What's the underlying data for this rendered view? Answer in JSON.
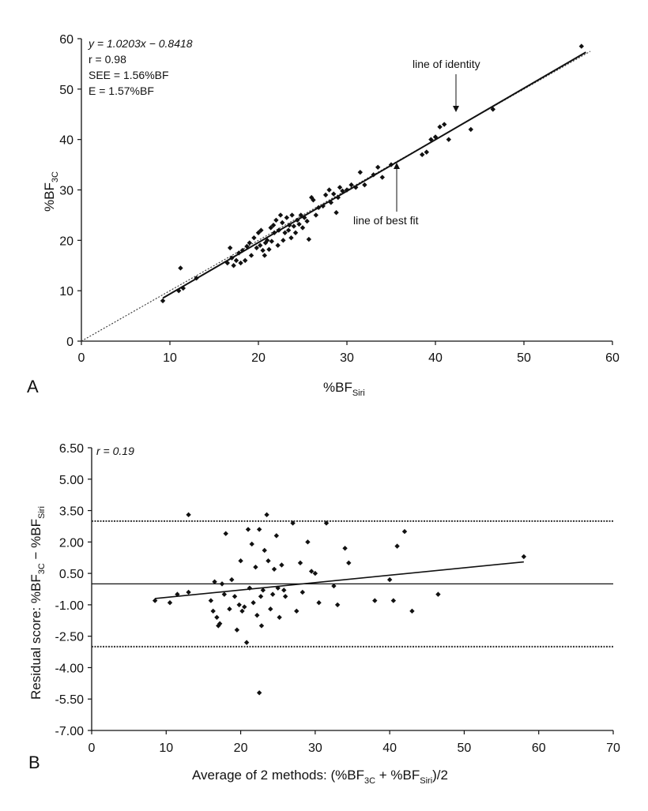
{
  "chart_data": [
    {
      "panel_label": "A",
      "type": "scatter",
      "xlabel": {
        "main": "%BF",
        "sub": "Siri"
      },
      "ylabel": {
        "main": "%BF",
        "sub": "3C"
      },
      "xlim": [
        0,
        60
      ],
      "ylim": [
        0,
        60
      ],
      "xticks": [
        0,
        10,
        20,
        30,
        40,
        50,
        60
      ],
      "yticks": [
        0,
        10,
        20,
        30,
        40,
        50,
        60
      ],
      "stats": {
        "equation": "y = 1.0203x − 0.8418",
        "r": "r = 0.98",
        "see": "SEE = 1.56%BF",
        "e": "E = 1.57%BF"
      },
      "annotations": {
        "identity": "line of identity",
        "best_fit": "line of best fit"
      },
      "identity_line": {
        "slope": 1,
        "intercept": 0
      },
      "fit_line": {
        "slope": 1.0203,
        "intercept": -0.8418,
        "x_range": [
          9.2,
          57
        ]
      },
      "points": [
        [
          9.2,
          8
        ],
        [
          11,
          10
        ],
        [
          11.2,
          14.5
        ],
        [
          11.5,
          10.5
        ],
        [
          13,
          12.5
        ],
        [
          16.5,
          15.5
        ],
        [
          16.8,
          18.5
        ],
        [
          17,
          16.5
        ],
        [
          17.2,
          15
        ],
        [
          17.5,
          16
        ],
        [
          17.8,
          17.5
        ],
        [
          18,
          15.5
        ],
        [
          18.2,
          18
        ],
        [
          18.5,
          16
        ],
        [
          18.7,
          18.8
        ],
        [
          19,
          19.5
        ],
        [
          19.2,
          17
        ],
        [
          19.5,
          20.5
        ],
        [
          19.8,
          18.5
        ],
        [
          20,
          21.5
        ],
        [
          20.2,
          19
        ],
        [
          20.3,
          22
        ],
        [
          20.5,
          18
        ],
        [
          20.7,
          17
        ],
        [
          20.8,
          19.5
        ],
        [
          21,
          20
        ],
        [
          21.2,
          18.2
        ],
        [
          21.4,
          22.5
        ],
        [
          21.5,
          19.8
        ],
        [
          21.7,
          23
        ],
        [
          21.8,
          21.5
        ],
        [
          22,
          24
        ],
        [
          22.2,
          19
        ],
        [
          22.3,
          22
        ],
        [
          22.5,
          25
        ],
        [
          22.7,
          23.5
        ],
        [
          22.8,
          20
        ],
        [
          23,
          21.5
        ],
        [
          23.2,
          24.5
        ],
        [
          23.4,
          22
        ],
        [
          23.5,
          23
        ],
        [
          23.7,
          20.5
        ],
        [
          23.8,
          25
        ],
        [
          24,
          22.8
        ],
        [
          24.2,
          21.5
        ],
        [
          24.4,
          24
        ],
        [
          24.6,
          23.2
        ],
        [
          24.8,
          25
        ],
        [
          25,
          22.5
        ],
        [
          25.2,
          24.5
        ],
        [
          25.5,
          23.8
        ],
        [
          25.7,
          20.2
        ],
        [
          26,
          28.5
        ],
        [
          26.2,
          28
        ],
        [
          26.5,
          25
        ],
        [
          26.8,
          26.5
        ],
        [
          27.3,
          26.8
        ],
        [
          27.6,
          29
        ],
        [
          28,
          30
        ],
        [
          28.2,
          27.5
        ],
        [
          28.5,
          29.2
        ],
        [
          28.8,
          25.5
        ],
        [
          29,
          28.5
        ],
        [
          29.2,
          30.5
        ],
        [
          29.5,
          29.8
        ],
        [
          30,
          30
        ],
        [
          30.5,
          31
        ],
        [
          31,
          30.5
        ],
        [
          31.5,
          33.5
        ],
        [
          32,
          31
        ],
        [
          33,
          33
        ],
        [
          33.5,
          34.5
        ],
        [
          34,
          32.5
        ],
        [
          35,
          35
        ],
        [
          38.5,
          37
        ],
        [
          39,
          37.5
        ],
        [
          39.5,
          40
        ],
        [
          40,
          40.5
        ],
        [
          40.5,
          42.5
        ],
        [
          41,
          43
        ],
        [
          41.5,
          40
        ],
        [
          44,
          42
        ],
        [
          46.5,
          46
        ],
        [
          56.5,
          58.5
        ]
      ]
    },
    {
      "panel_label": "B",
      "type": "scatter",
      "xlabel": {
        "text_a": "Average of 2 methods: (%BF",
        "sub_a": "3C",
        "text_b": " + %BF",
        "sub_b": "Siri",
        "text_c": ")/2"
      },
      "ylabel": {
        "text_a": "Residual score: %BF",
        "sub_a": "3C",
        "text_b": " − %BF",
        "sub_b": "Siri"
      },
      "xlim": [
        0,
        70
      ],
      "ylim": [
        -7.0,
        6.5
      ],
      "xticks": [
        0,
        10,
        20,
        30,
        40,
        50,
        60,
        70
      ],
      "yticks": [
        "6.50",
        "5.00",
        "3.50",
        "2.00",
        "0.50",
        "-1.00",
        "-2.50",
        "-4.00",
        "-5.50",
        "-7.00"
      ],
      "stats": {
        "r": "r = 0.19"
      },
      "mean_line": 0,
      "limits_of_agreement": [
        3.0,
        -3.0
      ],
      "fit_line": {
        "x_range": [
          8.5,
          58
        ],
        "y_range": [
          -0.7,
          1.05
        ]
      },
      "points": [
        [
          8.5,
          -0.8
        ],
        [
          10.5,
          -0.9
        ],
        [
          11.5,
          -0.5
        ],
        [
          13,
          -0.4
        ],
        [
          13,
          3.3
        ],
        [
          16,
          -0.8
        ],
        [
          16.3,
          -1.3
        ],
        [
          16.5,
          0.1
        ],
        [
          16.8,
          -1.6
        ],
        [
          17,
          -2.0
        ],
        [
          17.2,
          -1.9
        ],
        [
          17.5,
          0.0
        ],
        [
          17.8,
          -0.5
        ],
        [
          18,
          2.4
        ],
        [
          18.5,
          -1.2
        ],
        [
          18.8,
          0.2
        ],
        [
          19.2,
          -0.6
        ],
        [
          19.5,
          -2.2
        ],
        [
          19.8,
          -1.0
        ],
        [
          20,
          1.1
        ],
        [
          20.2,
          -1.3
        ],
        [
          20.5,
          -1.1
        ],
        [
          20.8,
          -2.8
        ],
        [
          21,
          2.6
        ],
        [
          21.2,
          -0.2
        ],
        [
          21.5,
          1.9
        ],
        [
          21.7,
          -0.9
        ],
        [
          22,
          0.8
        ],
        [
          22.2,
          -1.5
        ],
        [
          22.5,
          2.6
        ],
        [
          22.7,
          -0.6
        ],
        [
          22.8,
          -2.0
        ],
        [
          23,
          -0.3
        ],
        [
          23.2,
          1.6
        ],
        [
          23.5,
          3.3
        ],
        [
          23.7,
          1.1
        ],
        [
          24,
          -1.2
        ],
        [
          24.3,
          -0.5
        ],
        [
          24.5,
          0.7
        ],
        [
          24.8,
          2.3
        ],
        [
          25,
          -0.2
        ],
        [
          25.2,
          -1.6
        ],
        [
          25.5,
          0.9
        ],
        [
          25.8,
          -0.3
        ],
        [
          26,
          -0.6
        ],
        [
          22.5,
          -5.2
        ],
        [
          27,
          2.9
        ],
        [
          27.5,
          -1.3
        ],
        [
          28,
          1.0
        ],
        [
          28.3,
          -0.4
        ],
        [
          29,
          2.0
        ],
        [
          29.5,
          0.6
        ],
        [
          30,
          0.5
        ],
        [
          30.5,
          -0.9
        ],
        [
          31.5,
          2.9
        ],
        [
          32.5,
          -0.1
        ],
        [
          33,
          -1.0
        ],
        [
          34,
          1.7
        ],
        [
          34.5,
          1.0
        ],
        [
          38,
          -0.8
        ],
        [
          40,
          0.2
        ],
        [
          40.5,
          -0.8
        ],
        [
          41,
          1.8
        ],
        [
          42,
          2.5
        ],
        [
          43,
          -1.3
        ],
        [
          46.5,
          -0.5
        ],
        [
          58,
          1.3
        ]
      ]
    }
  ]
}
